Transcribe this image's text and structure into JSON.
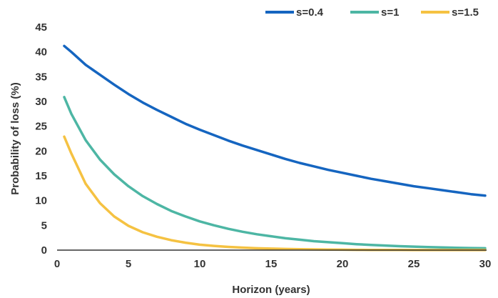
{
  "chart_data": {
    "type": "line",
    "title": "",
    "xlabel": "Horizon (years)",
    "ylabel": "Probability of loss (%)",
    "xlim": [
      0,
      30
    ],
    "ylim": [
      0,
      45
    ],
    "x_ticks": [
      0,
      5,
      10,
      15,
      20,
      25,
      30
    ],
    "y_ticks": [
      0,
      5,
      10,
      15,
      20,
      25,
      30,
      35,
      40,
      45
    ],
    "grid": false,
    "legend_position": "top-right",
    "series": [
      {
        "name": "s=0.4",
        "color": "#1565c0",
        "x": [
          0.5,
          1,
          2,
          3,
          4,
          5,
          6,
          7,
          8,
          9,
          10,
          11,
          12,
          13,
          14,
          15,
          16,
          17,
          18,
          19,
          20,
          21,
          22,
          23,
          24,
          25,
          26,
          27,
          28,
          29,
          30
        ],
        "values": [
          41.2,
          40.0,
          37.4,
          35.4,
          33.4,
          31.5,
          29.8,
          28.3,
          26.9,
          25.5,
          24.3,
          23.2,
          22.1,
          21.1,
          20.2,
          19.3,
          18.4,
          17.6,
          16.9,
          16.2,
          15.6,
          15.0,
          14.4,
          13.9,
          13.4,
          12.9,
          12.5,
          12.1,
          11.7,
          11.3,
          11.0
        ]
      },
      {
        "name": "s=1",
        "color": "#4db6a4",
        "x": [
          0.5,
          1,
          2,
          3,
          4,
          5,
          6,
          7,
          8,
          9,
          10,
          11,
          12,
          13,
          14,
          15,
          16,
          17,
          18,
          19,
          20,
          21,
          22,
          23,
          24,
          25,
          26,
          27,
          28,
          29,
          30
        ],
        "values": [
          30.9,
          27.5,
          22.2,
          18.3,
          15.3,
          12.9,
          10.9,
          9.3,
          7.9,
          6.8,
          5.8,
          5.0,
          4.3,
          3.7,
          3.2,
          2.8,
          2.4,
          2.1,
          1.8,
          1.6,
          1.4,
          1.2,
          1.05,
          0.92,
          0.8,
          0.7,
          0.62,
          0.55,
          0.48,
          0.42,
          0.37
        ]
      },
      {
        "name": "s=1.5",
        "color": "#f5c242",
        "x": [
          0.5,
          1,
          2,
          3,
          4,
          5,
          6,
          7,
          8,
          9,
          10,
          11,
          12,
          13,
          14,
          15,
          16,
          17,
          18,
          19,
          20,
          21,
          22,
          23,
          24,
          25,
          26,
          27,
          28,
          29,
          30
        ],
        "values": [
          22.9,
          19.5,
          13.4,
          9.5,
          6.8,
          4.9,
          3.6,
          2.7,
          2.0,
          1.5,
          1.1,
          0.85,
          0.65,
          0.5,
          0.38,
          0.3,
          0.23,
          0.18,
          0.14,
          0.11,
          0.08,
          0.06,
          0.05,
          0.04,
          0.03,
          0.02,
          0.02,
          0.01,
          0.01,
          0.01,
          0.01
        ]
      }
    ]
  }
}
